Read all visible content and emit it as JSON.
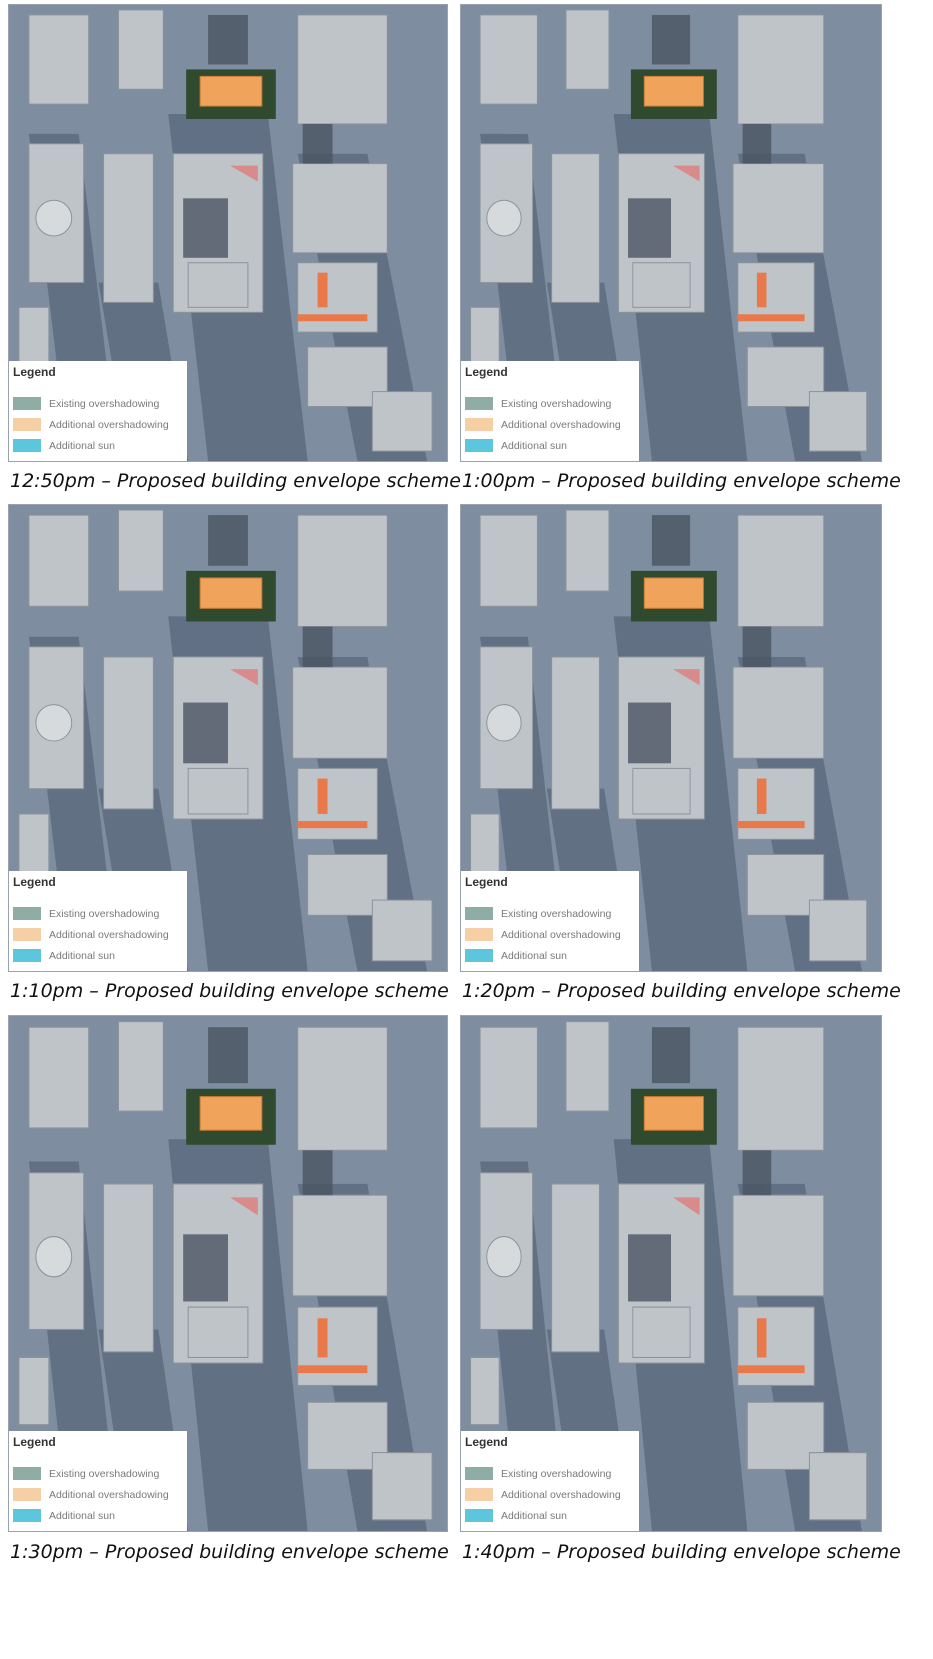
{
  "legend": {
    "title": "Legend",
    "items": [
      {
        "label": "Existing overshadowing",
        "color": "#8fada5"
      },
      {
        "label": "Additional overshadowing",
        "color": "#f6cfa6"
      },
      {
        "label": "Additional sun",
        "color": "#5cc6dd"
      }
    ]
  },
  "panels": [
    {
      "caption": "12:50pm – Proposed building envelope scheme"
    },
    {
      "caption": "1:00pm – Proposed building envelope scheme"
    },
    {
      "caption": "1:10pm – Proposed building envelope scheme"
    },
    {
      "caption": "1:20pm – Proposed building envelope scheme"
    },
    {
      "caption": "1:30pm – Proposed building envelope scheme"
    },
    {
      "caption": "1:40pm – Proposed building envelope scheme"
    }
  ],
  "colors": {
    "ground": "#7f8da0",
    "shadow": "#5d6b80",
    "building": "#bfc4c9",
    "site": "#f0a35a",
    "site_border": "#2f4a2e",
    "additional_overshadowing": "#e9794a"
  }
}
